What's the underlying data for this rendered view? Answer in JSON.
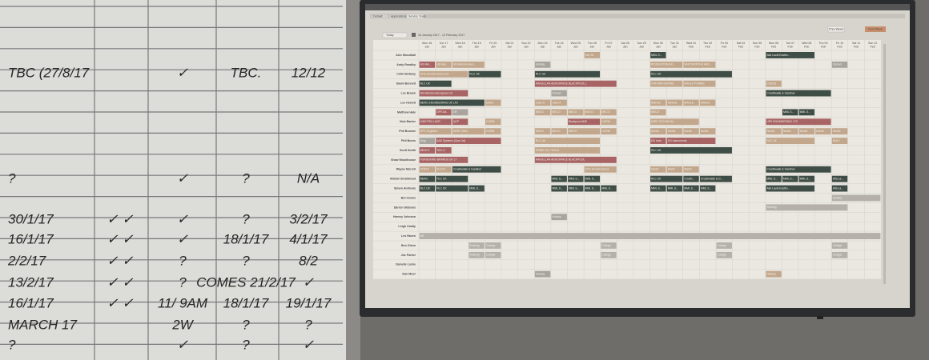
{
  "whiteboard": {
    "rows": [
      {
        "y": 92,
        "ink": "#2a2a2a",
        "cells": [
          "TBC (27/8/17",
          "",
          "✓",
          "TBC.",
          "12/12"
        ]
      },
      {
        "y": 224,
        "ink": "#2a2a2a",
        "cells": [
          "?",
          "",
          "✓",
          "?",
          "N/A"
        ]
      },
      {
        "y": 275,
        "ink": "#8a4a4a",
        "cells": [
          "30/1/17",
          "✓ ✓",
          "✓",
          "?",
          "3/2/17"
        ]
      },
      {
        "y": 300,
        "ink": "#2a2a2a",
        "cells": [
          "16/1/17",
          "✓ ✓",
          "✓",
          "18/1/17",
          "4/1/17"
        ]
      },
      {
        "y": 327,
        "ink": "#2a2a2a",
        "cells": [
          "2/2/17",
          "✓ ✓",
          "?",
          "?",
          "8/2"
        ]
      },
      {
        "y": 354,
        "ink": "#8a4a4a",
        "cells": [
          "13/2/17",
          "✓ ✓",
          "?",
          "COMES 21/2/17",
          "✓"
        ]
      },
      {
        "y": 380,
        "ink": "#2a2a2a",
        "cells": [
          "16/1/17",
          "✓ ✓",
          "11/ 9AM",
          "18/1/17",
          "19/1/17"
        ]
      },
      {
        "y": 407,
        "ink": "#2a2a2a",
        "cells": [
          "MARCH 17",
          "",
          "2W",
          "?",
          "?"
        ]
      },
      {
        "y": 432,
        "ink": "#2a2a2a",
        "cells": [
          "?",
          "",
          "✓",
          "?",
          "✓"
        ]
      }
    ]
  },
  "screen": {
    "tabs": [
      "Default",
      "Applications",
      "Service Team"
    ],
    "today": "Today",
    "range": "16 January 2017 - 12 February 2017",
    "prev": "Prev Week",
    "next": "Next Week",
    "days": [
      [
        "Mon 16",
        "Jan"
      ],
      [
        "Tue 17",
        "Jan"
      ],
      [
        "Wed 18",
        "Jan"
      ],
      [
        "Thu 19",
        "Jan"
      ],
      [
        "Fri 20",
        "Jan"
      ],
      [
        "Sat 21",
        "Jan"
      ],
      [
        "Sun 22",
        "Jan"
      ],
      [
        "Mon 23",
        "Jan"
      ],
      [
        "Tue 24",
        "Jan"
      ],
      [
        "Wed 25",
        "Jan"
      ],
      [
        "Thu 26",
        "Jan"
      ],
      [
        "Fri 27",
        "Jan"
      ],
      [
        "Sat 28",
        "Jan"
      ],
      [
        "Sun 29",
        "Jan"
      ],
      [
        "Mon 30",
        "Jan"
      ],
      [
        "Tue 31",
        "Jan"
      ],
      [
        "Wed 01",
        "Feb"
      ],
      [
        "Thu 02",
        "Feb"
      ],
      [
        "Fri 03",
        "Feb"
      ],
      [
        "Sat 04",
        "Feb"
      ],
      [
        "Sun 05",
        "Feb"
      ],
      [
        "Mon 06",
        "Feb"
      ],
      [
        "Tue 07",
        "Feb"
      ],
      [
        "Wed 08",
        "Feb"
      ],
      [
        "Thu 09",
        "Feb"
      ],
      [
        "Fri 10",
        "Feb"
      ],
      [
        "Sat 11",
        "Feb"
      ],
      [
        "Sun 12",
        "Feb"
      ]
    ],
    "rows": [
      {
        "name": "Alex Woodhall",
        "bookings": [
          [
            10,
            1,
            "Info Sh",
            "#c2a78c"
          ],
          [
            14,
            1,
            "MML S...",
            "#3e4d45"
          ],
          [
            21,
            3,
            "Alfa Laval Eastbo...",
            "#3e4d45"
          ]
        ]
      },
      {
        "name": "Andy Readley",
        "bookings": [
          [
            0,
            1,
            "HS Mar...",
            "#a86464"
          ],
          [
            1,
            1,
            "HS Mar...",
            "#c2a78c"
          ],
          [
            2,
            2,
            "HS Marston Aero...",
            "#c2a78c"
          ],
          [
            7,
            1,
            "Holiday",
            "#a9a59e"
          ],
          [
            14,
            2,
            "PIDDINGTON ER...",
            "#c2a78c"
          ],
          [
            16,
            2,
            "WHITWORTHS AER...",
            "#c2a78c"
          ],
          [
            25,
            1,
            "Osmod",
            "#a9a59e"
          ]
        ]
      },
      {
        "name": "Colin Bellamy",
        "bookings": [
          [
            0,
            3,
            "GPS Aerostructures Ltd",
            "#c2a78c"
          ],
          [
            3,
            2,
            "RLC UK",
            "#3e4d45"
          ],
          [
            7,
            4,
            "RLC UK",
            "#3e4d45"
          ],
          [
            14,
            5,
            "RLC UK",
            "#3e4d45"
          ]
        ]
      },
      {
        "name": "David Bennett",
        "bookings": [
          [
            0,
            2,
            "RLC UK",
            "#3e4d45"
          ],
          [
            7,
            5,
            "MAGELLAN AEROSPACE BLACKPOOL L",
            "#a86464"
          ],
          [
            14,
            2,
            "OXFORD ENGINE",
            "#c2a78c"
          ],
          [
            16,
            2,
            "MAHLE POWER",
            "#c2a78c"
          ],
          [
            21,
            1,
            "COBES",
            "#c2a78c"
          ]
        ]
      },
      {
        "name": "Lee Brown",
        "bookings": [
          [
            0,
            3,
            "HS Marston Aerospace Ltd",
            "#a86464"
          ],
          [
            8,
            1,
            "Osmod",
            "#a9a59e"
          ],
          [
            21,
            4,
            "Croathwaite & Gardiner",
            "#3e4d45"
          ]
        ]
      },
      {
        "name": "Lee Hewett",
        "bookings": [
          [
            0,
            4,
            "MERC ENGINEERING UK LTD",
            "#3e4d45"
          ],
          [
            4,
            1,
            "MAHL",
            "#c2a78c"
          ],
          [
            7,
            1,
            "Clare A",
            "#c2a78c"
          ],
          [
            8,
            1,
            "Clare A",
            "#c2a78c"
          ],
          [
            14,
            1,
            "MAHLE",
            "#c2a78c"
          ],
          [
            15,
            1,
            "MAHLE",
            "#c2a78c"
          ],
          [
            16,
            1,
            "MAHLE",
            "#c2a78c"
          ],
          [
            17,
            1,
            "MAHLE",
            "#c2a78c"
          ]
        ]
      },
      {
        "name": "Matthew Hale",
        "bookings": [
          [
            1,
            1,
            "GPS Ae...",
            "#a86464"
          ],
          [
            2,
            1,
            "Off",
            "#a9a59e"
          ],
          [
            7,
            1,
            "MECO",
            "#c2a78c"
          ],
          [
            8,
            1,
            "MECO",
            "#c2a78c"
          ],
          [
            9,
            1,
            "MECO",
            "#c2a78c"
          ],
          [
            10,
            1,
            "MECO",
            "#c2a78c"
          ],
          [
            11,
            1,
            "MECO",
            "#c2a78c"
          ],
          [
            14,
            1,
            "MECO",
            "#c2a78c"
          ],
          [
            22,
            1,
            "MML S...",
            "#3e4d45"
          ],
          [
            23,
            1,
            "MML S...",
            "#3e4d45"
          ]
        ]
      },
      {
        "name": "Nick Barker",
        "bookings": [
          [
            0,
            2,
            "KINETRIX LIMIT...",
            "#a86464"
          ],
          [
            2,
            1,
            "QCP",
            "#a86464"
          ],
          [
            4,
            1,
            "CORM",
            "#c2a78c"
          ],
          [
            9,
            2,
            "Blackpool AMS",
            "#a86464"
          ],
          [
            11,
            1,
            "CORM",
            "#c2a78c"
          ],
          [
            14,
            3,
            "MIRE TECHNICAL",
            "#c2a78c"
          ],
          [
            21,
            4,
            "UPE ENGINEERING LTD",
            "#a86464"
          ]
        ]
      },
      {
        "name": "Phil Browne",
        "bookings": [
          [
            0,
            2,
            "GPC Engineer",
            "#c2a78c"
          ],
          [
            2,
            2,
            "MERC ENG",
            "#c2a78c"
          ],
          [
            4,
            1,
            "CORM",
            "#c2a78c"
          ],
          [
            7,
            1,
            "MECO",
            "#c2a78c"
          ],
          [
            8,
            1,
            "MECO",
            "#c2a78c"
          ],
          [
            9,
            2,
            "MECO",
            "#c2a78c"
          ],
          [
            11,
            1,
            "CORM",
            "#c2a78c"
          ],
          [
            14,
            1,
            "Nordic",
            "#c2a78c"
          ],
          [
            15,
            1,
            "Nordic",
            "#c2a78c"
          ],
          [
            16,
            1,
            "Nordic",
            "#c2a78c"
          ],
          [
            17,
            1,
            "Nordic",
            "#c2a78c"
          ],
          [
            21,
            1,
            "Nordic",
            "#c2a78c"
          ],
          [
            22,
            1,
            "Nordic",
            "#c2a78c"
          ],
          [
            23,
            1,
            "Nordic",
            "#c2a78c"
          ],
          [
            24,
            1,
            "Nordic",
            "#c2a78c"
          ],
          [
            25,
            1,
            "Nordic",
            "#c2a78c"
          ]
        ]
      },
      {
        "name": "Phil Burns",
        "bookings": [
          [
            0,
            1,
            "Gray",
            "#a9a59e"
          ],
          [
            1,
            4,
            "BAE Systems (Ops Ltd)",
            "#a86464"
          ],
          [
            7,
            4,
            "RLC UK",
            "#c2a78c"
          ],
          [
            14,
            1,
            "DG Instr",
            "#a86464"
          ],
          [
            15,
            3,
            "DG Instruments",
            "#a86464"
          ],
          [
            21,
            3,
            "RLC UK",
            "#c2a78c"
          ],
          [
            25,
            1,
            "BLW I",
            "#c2a78c"
          ]
        ]
      },
      {
        "name": "Scott Smith",
        "bookings": [
          [
            0,
            1,
            "MEGLE",
            "#a86464"
          ],
          [
            1,
            1,
            "TAYLO",
            "#a86464"
          ],
          [
            7,
            4,
            "PRIME OIL TOOLS",
            "#c2a78c"
          ],
          [
            14,
            5,
            "RLC UK",
            "#3e4d45"
          ]
        ]
      },
      {
        "name": "Shaw Woodhouse",
        "bookings": [
          [
            0,
            3,
            "FORGEKING BRANDS UK LT",
            "#a86464"
          ],
          [
            7,
            5,
            "MAGELLAN AEROSPACE BLACKPOOL",
            "#a86464"
          ]
        ]
      },
      {
        "name": "Wayne Morrell",
        "bookings": [
          [
            0,
            1,
            "STRAC",
            "#c2a78c"
          ],
          [
            1,
            1,
            "ELECT",
            "#c2a78c"
          ],
          [
            2,
            3,
            "Croathwaite & Gardiner",
            "#3e4d45"
          ],
          [
            10,
            2,
            "GPS Aerostructures",
            "#c2a78c"
          ],
          [
            14,
            1,
            "Martin",
            "#c2a78c"
          ],
          [
            15,
            1,
            "Martin",
            "#c2a78c"
          ],
          [
            16,
            1,
            "Martin",
            "#c2a78c"
          ],
          [
            21,
            4,
            "Croathwaite & Gardiner",
            "#3e4d45"
          ]
        ]
      },
      {
        "name": "Alistair Smallwood",
        "bookings": [
          [
            0,
            1,
            "MERC",
            "#3e4d45"
          ],
          [
            1,
            2,
            "RLC UK",
            "#3e4d45"
          ],
          [
            8,
            1,
            "MML S...",
            "#3e4d45"
          ],
          [
            9,
            1,
            "MML S...",
            "#3e4d45"
          ],
          [
            10,
            1,
            "MML S...",
            "#3e4d45"
          ],
          [
            14,
            2,
            "RLC UK",
            "#3e4d45"
          ],
          [
            16,
            1,
            "Croath...",
            "#3e4d45"
          ],
          [
            17,
            2,
            "Croathwaite & G...",
            "#3e4d45"
          ],
          [
            21,
            1,
            "MML S...",
            "#3e4d45"
          ],
          [
            22,
            1,
            "MML S...",
            "#3e4d45"
          ],
          [
            23,
            1,
            "MML S...",
            "#3e4d45"
          ],
          [
            25,
            1,
            "Alfa La...",
            "#3e4d45"
          ]
        ]
      },
      {
        "name": "Simon Andrews",
        "bookings": [
          [
            0,
            1,
            "RLC UK",
            "#3e4d45"
          ],
          [
            1,
            2,
            "RLC UK",
            "#3e4d45"
          ],
          [
            3,
            1,
            "MML S...",
            "#3e4d45"
          ],
          [
            8,
            1,
            "MML S...",
            "#3e4d45"
          ],
          [
            9,
            1,
            "MML S...",
            "#3e4d45"
          ],
          [
            10,
            1,
            "MML S...",
            "#3e4d45"
          ],
          [
            11,
            1,
            "MML S...",
            "#3e4d45"
          ],
          [
            14,
            1,
            "MML S...",
            "#3e4d45"
          ],
          [
            15,
            1,
            "MML S...",
            "#3e4d45"
          ],
          [
            16,
            1,
            "MML S...",
            "#3e4d45"
          ],
          [
            17,
            1,
            "MML S...",
            "#3e4d45"
          ],
          [
            21,
            3,
            "Alfa Laval Eastbo...",
            "#3e4d45"
          ],
          [
            25,
            1,
            "Alfa La...",
            "#3e4d45"
          ]
        ]
      },
      {
        "name": "Ben Evans",
        "bookings": [
          [
            25,
            3,
            "Holiday",
            "#b5b1aa"
          ]
        ]
      },
      {
        "name": "Darren Gibbons",
        "bookings": [
          [
            21,
            5,
            "Training",
            "#b5b1aa"
          ]
        ]
      },
      {
        "name": "Harvey Johnson",
        "bookings": [
          [
            8,
            1,
            "Holiday",
            "#a9a59e"
          ]
        ]
      },
      {
        "name": "Leigh Caddy",
        "bookings": []
      },
      {
        "name": "Les Raven",
        "bookings": [
          [
            0,
            28,
            "Off",
            "#b5b1aa"
          ]
        ]
      },
      {
        "name": "Ben Olson",
        "bookings": [
          [
            3,
            1,
            "Training",
            "#b5b1aa"
          ],
          [
            4,
            1,
            "College",
            "#b5b1aa"
          ],
          [
            11,
            1,
            "College",
            "#b5b1aa"
          ],
          [
            18,
            1,
            "College",
            "#b5b1aa"
          ],
          [
            25,
            1,
            "College",
            "#b5b1aa"
          ]
        ]
      },
      {
        "name": "Joe Parker",
        "bookings": [
          [
            3,
            1,
            "Training",
            "#b5b1aa"
          ],
          [
            4,
            1,
            "College",
            "#b5b1aa"
          ],
          [
            11,
            1,
            "College",
            "#b5b1aa"
          ],
          [
            18,
            1,
            "College",
            "#b5b1aa"
          ],
          [
            25,
            1,
            "College",
            "#b5b1aa"
          ]
        ]
      },
      {
        "name": "Camelle Locke",
        "bookings": []
      },
      {
        "name": "Dan Moor",
        "bookings": [
          [
            7,
            1,
            "Holiday",
            "#a9a59e"
          ],
          [
            21,
            1,
            "Holiday",
            "#c2a78c"
          ]
        ]
      }
    ]
  }
}
